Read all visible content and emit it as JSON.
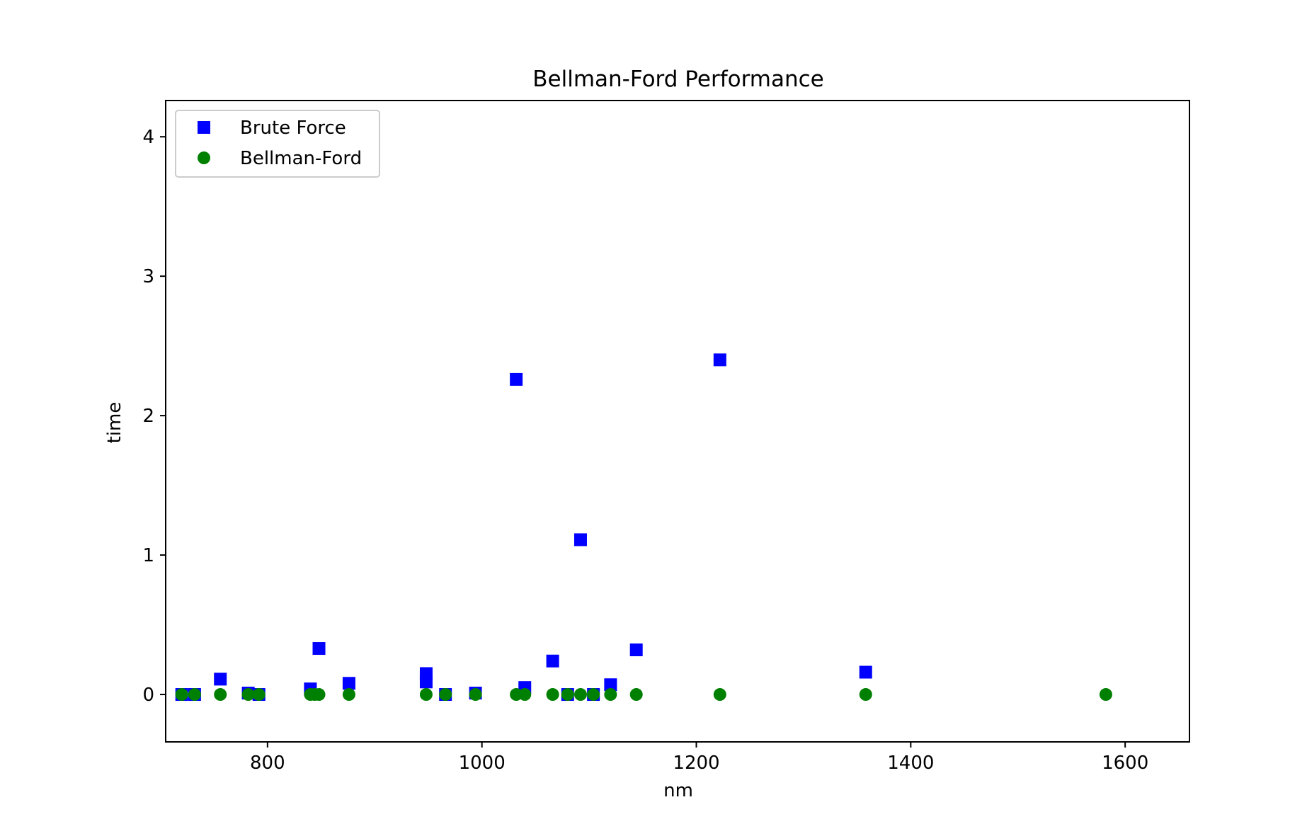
{
  "chart_data": {
    "type": "scatter",
    "title": "Bellman-Ford Performance",
    "xlabel": "nm",
    "ylabel": "time",
    "xlim": [
      705,
      1660
    ],
    "ylim": [
      -0.34,
      4.26
    ],
    "xticks": [
      800,
      1000,
      1200,
      1400,
      1600
    ],
    "xtick_labels": [
      "800",
      "1000",
      "1200",
      "1400",
      "1600"
    ],
    "yticks": [
      0,
      1,
      2,
      3,
      4
    ],
    "ytick_labels": [
      "0",
      "1",
      "2",
      "3",
      "4"
    ],
    "grid": false,
    "legend_position": "upper left",
    "series": [
      {
        "name": "Brute Force",
        "marker": "square",
        "color": "#0000ff",
        "points": [
          [
            720,
            0.0
          ],
          [
            732,
            0.0
          ],
          [
            756,
            0.11
          ],
          [
            782,
            0.01
          ],
          [
            792,
            0.0
          ],
          [
            840,
            0.04
          ],
          [
            848,
            0.33
          ],
          [
            876,
            0.08
          ],
          [
            948,
            0.15
          ],
          [
            948,
            0.09
          ],
          [
            966,
            0.0
          ],
          [
            994,
            0.01
          ],
          [
            1032,
            2.26
          ],
          [
            1040,
            0.05
          ],
          [
            1066,
            0.24
          ],
          [
            1080,
            0.0
          ],
          [
            1092,
            1.11
          ],
          [
            1104,
            0.0
          ],
          [
            1120,
            0.07
          ],
          [
            1144,
            0.32
          ],
          [
            1222,
            2.4
          ],
          [
            1358,
            0.16
          ]
        ]
      },
      {
        "name": "Bellman-Ford",
        "marker": "circle",
        "color": "#008000",
        "points": [
          [
            720,
            0.0
          ],
          [
            732,
            0.0
          ],
          [
            756,
            0.0
          ],
          [
            782,
            0.0
          ],
          [
            792,
            0.0
          ],
          [
            840,
            0.0
          ],
          [
            844,
            0.0
          ],
          [
            848,
            0.0
          ],
          [
            876,
            0.0
          ],
          [
            948,
            0.0
          ],
          [
            966,
            0.0
          ],
          [
            994,
            0.0
          ],
          [
            1032,
            0.0
          ],
          [
            1040,
            0.0
          ],
          [
            1066,
            0.0
          ],
          [
            1080,
            0.0
          ],
          [
            1092,
            0.0
          ],
          [
            1104,
            0.0
          ],
          [
            1120,
            0.0
          ],
          [
            1144,
            0.0
          ],
          [
            1222,
            0.0
          ],
          [
            1358,
            0.0
          ],
          [
            1582,
            0.0
          ]
        ]
      }
    ]
  }
}
